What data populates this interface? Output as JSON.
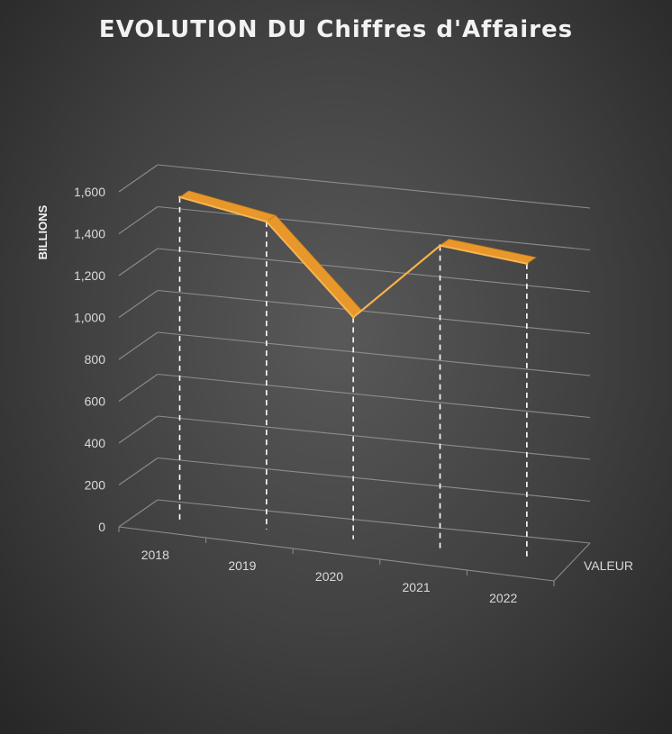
{
  "chart_data": {
    "type": "line",
    "title": "EVOLUTION DU Chiffres d'Affaires",
    "categories": [
      "2018",
      "2019",
      "2020",
      "2021",
      "2022"
    ],
    "series": [
      {
        "name": "VALEUR",
        "values": [
          1540,
          1470,
          1060,
          1450,
          1410
        ]
      }
    ],
    "ylabel": "BILLIONS",
    "ylim": [
      0,
      1600
    ],
    "yticks": [
      "0",
      "200",
      "400",
      "600",
      "800",
      "1,000",
      "1,200",
      "1,400",
      "1,600"
    ],
    "grid": true,
    "drop_lines": true,
    "style": "3d-ribbon",
    "colors": {
      "line": "#e8972a",
      "line_highlight": "#f5b555",
      "gridline": "#8c8c8c",
      "dropline": "#ffffff"
    }
  }
}
